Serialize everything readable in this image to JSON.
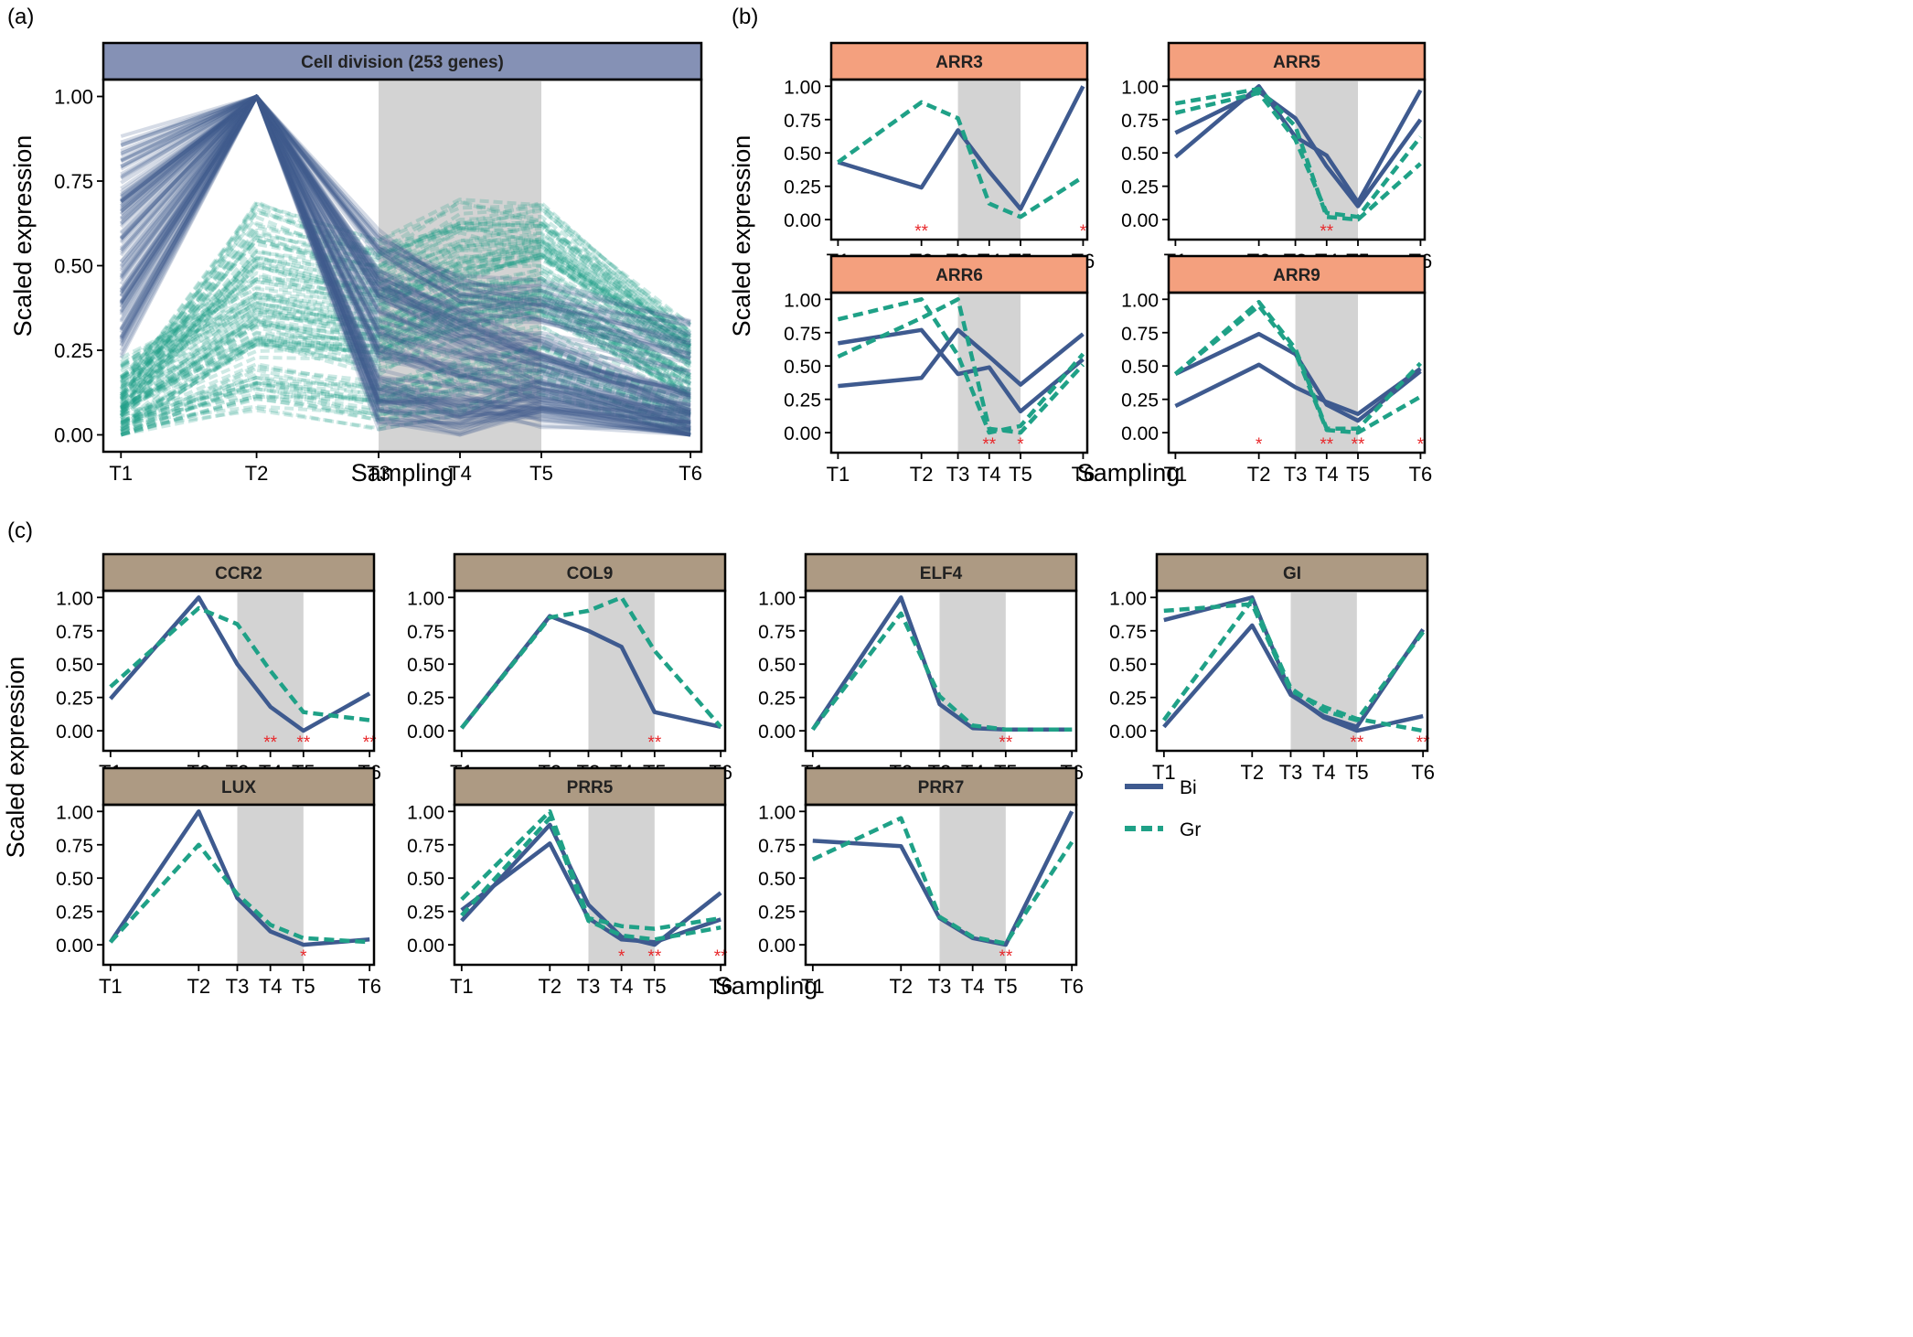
{
  "panel_letters": [
    "(a)",
    "(b)",
    "(c)"
  ],
  "colors": {
    "Bi": "#3e5a8f",
    "Gr": "#1fa187",
    "strip_a": "#8591b5",
    "strip_b": "#f4a07e",
    "strip_c": "#ad9a83",
    "shade": "#d3d3d3",
    "star": "#e8282b"
  },
  "x_ticks": [
    "T1",
    "T2",
    "T3",
    "T4",
    "T5",
    "T6"
  ],
  "y_ticks": [
    "0.00",
    "0.25",
    "0.50",
    "0.75",
    "1.00"
  ],
  "axis_label_y": "Scaled expression",
  "axis_label_x": "Sampling",
  "legend": [
    {
      "name": "Bi",
      "style": "solid"
    },
    {
      "name": "Gr",
      "style": "dashed"
    }
  ],
  "chart_data": [
    {
      "type": "line",
      "panel": "(a)",
      "title": "Cell division (253 genes)",
      "x": [
        1,
        2,
        2.9,
        3.5,
        4.1,
        5.2
      ],
      "x_tick_labels": [
        "T1",
        "T2",
        "T3",
        "T4",
        "T5",
        "T6"
      ],
      "shaded_interval": [
        2.9,
        4.1
      ],
      "ylim": [
        -0.05,
        1.05
      ],
      "n_genes": 253,
      "representative_series": [
        {
          "name": "Bi",
          "values": [
            0.85,
            1.0,
            0.58,
            0.44,
            0.42,
            0.3
          ]
        },
        {
          "name": "Bi",
          "values": [
            0.7,
            1.0,
            0.45,
            0.35,
            0.25,
            0.1
          ]
        },
        {
          "name": "Bi",
          "values": [
            0.55,
            1.0,
            0.3,
            0.2,
            0.15,
            0.05
          ]
        },
        {
          "name": "Bi",
          "values": [
            0.4,
            1.0,
            0.12,
            0.08,
            0.05,
            0.0
          ]
        },
        {
          "name": "Bi",
          "values": [
            0.25,
            1.0,
            0.05,
            0.02,
            0.1,
            0.0
          ]
        },
        {
          "name": "Gr",
          "values": [
            0.1,
            0.65,
            0.55,
            0.66,
            0.66,
            0.3
          ]
        },
        {
          "name": "Gr",
          "values": [
            0.2,
            0.45,
            0.4,
            0.5,
            0.55,
            0.25
          ]
        },
        {
          "name": "Gr",
          "values": [
            0.05,
            0.3,
            0.25,
            0.35,
            0.4,
            0.15
          ]
        },
        {
          "name": "Gr",
          "values": [
            0.0,
            0.1,
            0.05,
            0.1,
            0.15,
            0.0
          ]
        }
      ]
    },
    {
      "type": "line",
      "panel": "(b)",
      "title": "ARR3",
      "x": [
        1,
        2.6,
        3.3,
        3.9,
        4.5,
        5.7
      ],
      "shaded_interval": [
        3.3,
        4.5
      ],
      "ylim": [
        -0.15,
        1.05
      ],
      "series": [
        {
          "name": "Bi",
          "values": [
            0.43,
            0.24,
            0.67,
            0.36,
            0.08,
            1.0
          ]
        },
        {
          "name": "Gr",
          "values": [
            0.43,
            0.88,
            0.76,
            0.12,
            0.02,
            0.32
          ]
        }
      ],
      "annotations": [
        {
          "x": 2.6,
          "text": "**"
        },
        {
          "x": 5.7,
          "text": "*"
        }
      ]
    },
    {
      "type": "line",
      "panel": "(b)",
      "title": "ARR5",
      "x": [
        1,
        2.6,
        3.3,
        3.9,
        4.5,
        5.7
      ],
      "shaded_interval": [
        3.3,
        4.5
      ],
      "ylim": [
        -0.15,
        1.05
      ],
      "series": [
        {
          "name": "Bi",
          "values": [
            0.47,
            1.0,
            0.62,
            0.48,
            0.13,
            0.97
          ]
        },
        {
          "name": "Bi",
          "values": [
            0.65,
            0.96,
            0.76,
            0.4,
            0.1,
            0.75
          ]
        },
        {
          "name": "Gr",
          "values": [
            0.87,
            0.98,
            0.7,
            0.02,
            0.0,
            0.42
          ]
        },
        {
          "name": "Gr",
          "values": [
            0.8,
            0.95,
            0.6,
            0.05,
            0.02,
            0.62
          ]
        }
      ],
      "annotations": [
        {
          "x": 3.9,
          "text": "**"
        }
      ]
    },
    {
      "type": "line",
      "panel": "(b)",
      "title": "ARR6",
      "x": [
        1,
        2.6,
        3.3,
        3.9,
        4.5,
        5.7
      ],
      "shaded_interval": [
        3.3,
        4.5
      ],
      "ylim": [
        -0.15,
        1.05
      ],
      "series": [
        {
          "name": "Bi",
          "values": [
            0.67,
            0.77,
            0.44,
            0.49,
            0.16,
            0.55
          ]
        },
        {
          "name": "Bi",
          "values": [
            0.35,
            0.41,
            0.77,
            0.57,
            0.36,
            0.74
          ]
        },
        {
          "name": "Gr",
          "values": [
            0.85,
            1.0,
            0.58,
            0.0,
            0.05,
            0.59
          ]
        },
        {
          "name": "Gr",
          "values": [
            0.57,
            0.86,
            1.0,
            0.03,
            0.0,
            0.51
          ]
        }
      ],
      "annotations": [
        {
          "x": 3.9,
          "text": "**"
        },
        {
          "x": 4.5,
          "text": "*"
        }
      ]
    },
    {
      "type": "line",
      "panel": "(b)",
      "title": "ARR9",
      "x": [
        1,
        2.6,
        3.3,
        3.9,
        4.5,
        5.7
      ],
      "shaded_interval": [
        3.3,
        4.5
      ],
      "ylim": [
        -0.15,
        1.05
      ],
      "series": [
        {
          "name": "Bi",
          "values": [
            0.2,
            0.51,
            0.34,
            0.23,
            0.14,
            0.48
          ]
        },
        {
          "name": "Bi",
          "values": [
            0.44,
            0.74,
            0.59,
            0.21,
            0.09,
            0.46
          ]
        },
        {
          "name": "Gr",
          "values": [
            0.44,
            0.98,
            0.63,
            0.03,
            0.03,
            0.52
          ]
        },
        {
          "name": "Gr",
          "values": [
            0.44,
            0.95,
            0.6,
            0.02,
            0.0,
            0.27
          ]
        }
      ],
      "annotations": [
        {
          "x": 2.6,
          "text": "*"
        },
        {
          "x": 3.9,
          "text": "**"
        },
        {
          "x": 4.5,
          "text": "**"
        },
        {
          "x": 5.7,
          "text": "*"
        }
      ]
    },
    {
      "type": "line",
      "panel": "(c)",
      "title": "CCR2",
      "x": [
        1,
        2.6,
        3.3,
        3.9,
        4.5,
        5.7
      ],
      "shaded_interval": [
        3.3,
        4.5
      ],
      "ylim": [
        -0.15,
        1.05
      ],
      "series": [
        {
          "name": "Bi",
          "values": [
            0.24,
            1.0,
            0.5,
            0.18,
            0.0,
            0.28
          ]
        },
        {
          "name": "Gr",
          "values": [
            0.33,
            0.92,
            0.8,
            0.45,
            0.14,
            0.08
          ]
        }
      ],
      "annotations": [
        {
          "x": 3.9,
          "text": "**"
        },
        {
          "x": 4.5,
          "text": "**"
        },
        {
          "x": 5.7,
          "text": "**"
        }
      ]
    },
    {
      "type": "line",
      "panel": "(c)",
      "title": "COL9",
      "x": [
        1,
        2.6,
        3.3,
        3.9,
        4.5,
        5.7
      ],
      "shaded_interval": [
        3.3,
        4.5
      ],
      "ylim": [
        -0.15,
        1.05
      ],
      "series": [
        {
          "name": "Bi",
          "values": [
            0.02,
            0.86,
            0.75,
            0.63,
            0.14,
            0.03
          ]
        },
        {
          "name": "Gr",
          "values": [
            0.02,
            0.85,
            0.9,
            1.0,
            0.6,
            0.03
          ]
        }
      ],
      "annotations": [
        {
          "x": 4.5,
          "text": "**"
        }
      ]
    },
    {
      "type": "line",
      "panel": "(c)",
      "title": "ELF4",
      "x": [
        1,
        2.6,
        3.3,
        3.9,
        4.5,
        5.7
      ],
      "shaded_interval": [
        3.3,
        4.5
      ],
      "ylim": [
        -0.15,
        1.05
      ],
      "series": [
        {
          "name": "Bi",
          "values": [
            0.01,
            1.0,
            0.2,
            0.02,
            0.01,
            0.01
          ]
        },
        {
          "name": "Gr",
          "values": [
            0.01,
            0.88,
            0.26,
            0.04,
            0.01,
            0.01
          ]
        }
      ],
      "annotations": [
        {
          "x": 4.5,
          "text": "**"
        }
      ]
    },
    {
      "type": "line",
      "panel": "(c)",
      "title": "GI",
      "x": [
        1,
        2.6,
        3.3,
        3.9,
        4.5,
        5.7
      ],
      "shaded_interval": [
        3.3,
        4.5
      ],
      "ylim": [
        -0.15,
        1.05
      ],
      "series": [
        {
          "name": "Bi",
          "values": [
            0.83,
            1.0,
            0.28,
            0.1,
            0.0,
            0.11
          ]
        },
        {
          "name": "Bi",
          "values": [
            0.03,
            0.79,
            0.27,
            0.11,
            0.03,
            0.76
          ]
        },
        {
          "name": "Gr",
          "values": [
            0.9,
            0.95,
            0.3,
            0.18,
            0.09,
            0.0
          ]
        },
        {
          "name": "Gr",
          "values": [
            0.08,
            0.98,
            0.32,
            0.15,
            0.08,
            0.74
          ]
        }
      ],
      "annotations": [
        {
          "x": 4.5,
          "text": "**"
        },
        {
          "x": 5.7,
          "text": "**"
        }
      ]
    },
    {
      "type": "line",
      "panel": "(c)",
      "title": "LUX",
      "x": [
        1,
        2.6,
        3.3,
        3.9,
        4.5,
        5.7
      ],
      "shaded_interval": [
        3.3,
        4.5
      ],
      "ylim": [
        -0.15,
        1.05
      ],
      "series": [
        {
          "name": "Bi",
          "values": [
            0.02,
            1.0,
            0.35,
            0.1,
            0.0,
            0.04
          ]
        },
        {
          "name": "Gr",
          "values": [
            0.02,
            0.75,
            0.38,
            0.15,
            0.05,
            0.02
          ]
        }
      ],
      "annotations": [
        {
          "x": 4.5,
          "text": "*"
        }
      ]
    },
    {
      "type": "line",
      "panel": "(c)",
      "title": "PRR5",
      "x": [
        1,
        2.6,
        3.3,
        3.9,
        4.5,
        5.7
      ],
      "shaded_interval": [
        3.3,
        4.5
      ],
      "ylim": [
        -0.15,
        1.05
      ],
      "series": [
        {
          "name": "Bi",
          "values": [
            0.18,
            0.9,
            0.3,
            0.06,
            0.0,
            0.39
          ]
        },
        {
          "name": "Bi",
          "values": [
            0.26,
            0.76,
            0.2,
            0.04,
            0.02,
            0.19
          ]
        },
        {
          "name": "Gr",
          "values": [
            0.34,
            1.0,
            0.2,
            0.14,
            0.12,
            0.2
          ]
        },
        {
          "name": "Gr",
          "values": [
            0.22,
            0.95,
            0.18,
            0.07,
            0.04,
            0.13
          ]
        }
      ],
      "annotations": [
        {
          "x": 3.9,
          "text": "*"
        },
        {
          "x": 4.5,
          "text": "**"
        },
        {
          "x": 5.7,
          "text": "**"
        }
      ]
    },
    {
      "type": "line",
      "panel": "(c)",
      "title": "PRR7",
      "x": [
        1,
        2.6,
        3.3,
        3.9,
        4.5,
        5.7
      ],
      "shaded_interval": [
        3.3,
        4.5
      ],
      "ylim": [
        -0.15,
        1.05
      ],
      "series": [
        {
          "name": "Bi",
          "values": [
            0.78,
            0.74,
            0.2,
            0.05,
            0.0,
            1.0
          ]
        },
        {
          "name": "Gr",
          "values": [
            0.64,
            0.95,
            0.21,
            0.06,
            0.01,
            0.77
          ]
        }
      ],
      "annotations": [
        {
          "x": 4.5,
          "text": "**"
        }
      ]
    }
  ]
}
